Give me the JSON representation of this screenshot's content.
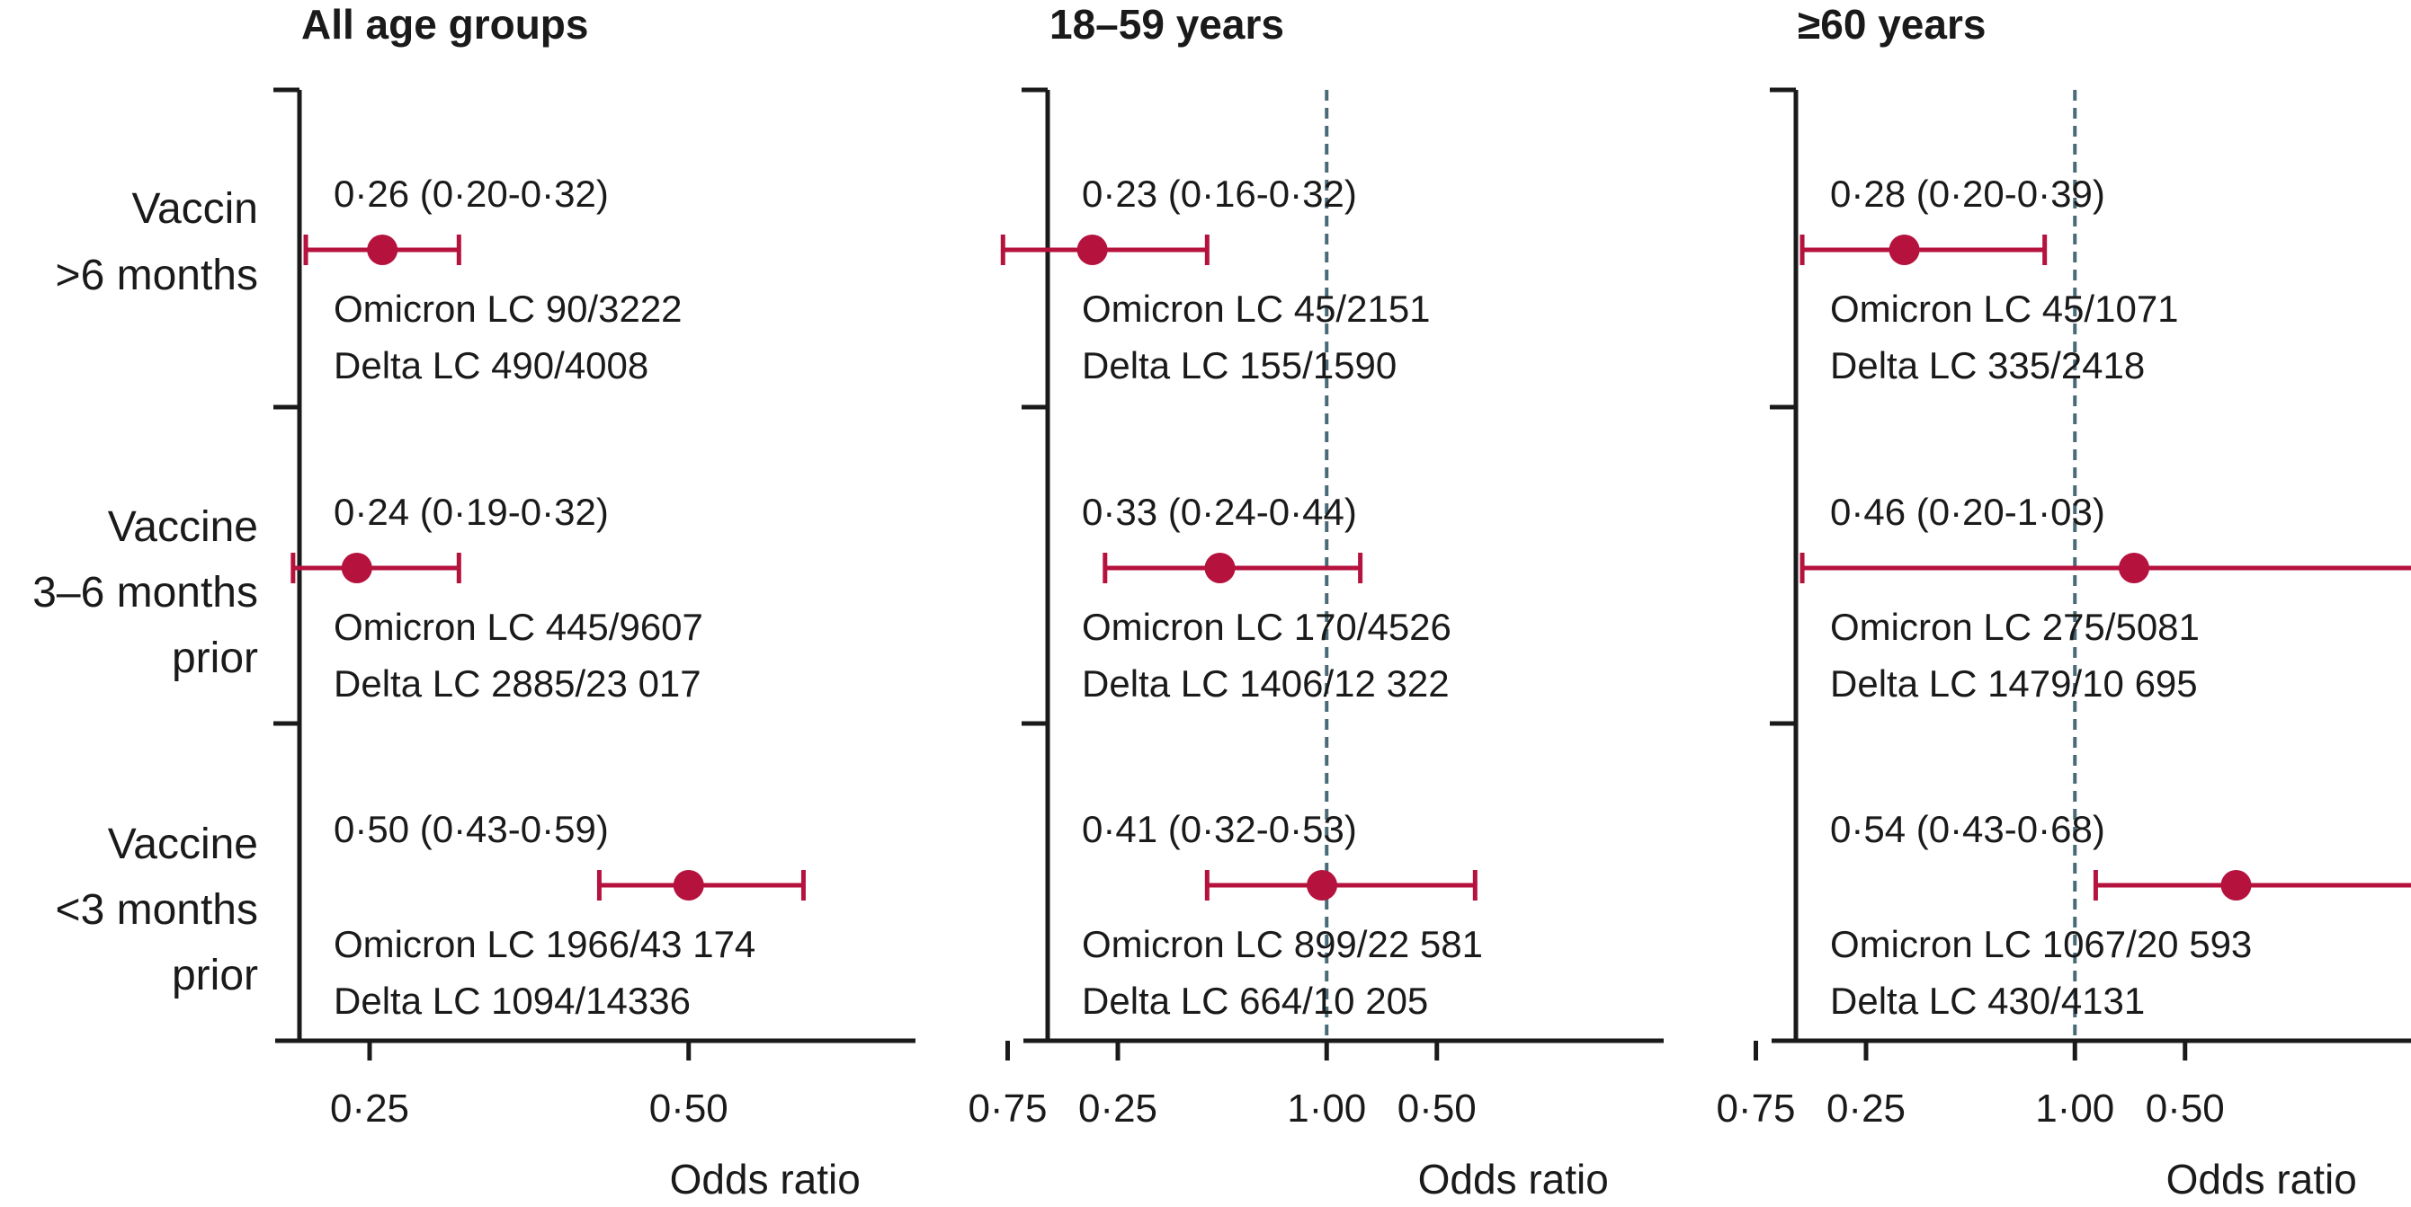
{
  "chart_data": {
    "type": "forest",
    "xlabel": "Odds ratio",
    "xlim": [
      0.14,
      1.07
    ],
    "xticks": [
      0.25,
      0.5,
      0.75,
      1.0
    ],
    "xtick_labels": [
      "0·25",
      "0·50",
      "0·75",
      "1·00"
    ],
    "reference_line": 1.0,
    "row_labels": [
      [
        "Vaccin",
        ">6 months"
      ],
      [
        "Vaccine",
        "3–6 months",
        "prior"
      ],
      [
        "Vaccine",
        "<3 months",
        "prior"
      ]
    ],
    "colors": {
      "marker": "#b5123e",
      "axis": "#1a1a1a",
      "reference": "#4a6a78"
    },
    "panels": [
      {
        "title": "All age groups",
        "rows": [
          {
            "or": 0.26,
            "lo": 0.2,
            "hi": 0.32,
            "label": "0·26 (0·20-0·32)",
            "omicron": "Omicron LC 90/3222",
            "delta": "Delta LC 490/4008"
          },
          {
            "or": 0.24,
            "lo": 0.19,
            "hi": 0.32,
            "label": "0·24 (0·19-0·32)",
            "omicron": "Omicron LC 445/9607",
            "delta": "Delta LC 2885/23 017"
          },
          {
            "or": 0.5,
            "lo": 0.43,
            "hi": 0.59,
            "label": "0·50 (0·43-0·59)",
            "omicron": "Omicron LC 1966/43 174",
            "delta": "Delta LC 1094/14336"
          }
        ]
      },
      {
        "title": "18–59 years",
        "rows": [
          {
            "or": 0.23,
            "lo": 0.16,
            "hi": 0.32,
            "label": "0·23 (0·16-0·32)",
            "omicron": "Omicron LC 45/2151",
            "delta": "Delta LC 155/1590"
          },
          {
            "or": 0.33,
            "lo": 0.24,
            "hi": 0.44,
            "label": "0·33 (0·24-0·44)",
            "omicron": "Omicron LC 170/4526",
            "delta": "Delta LC 1406/12 322"
          },
          {
            "or": 0.41,
            "lo": 0.32,
            "hi": 0.53,
            "label": "0·41 (0·32-0·53)",
            "omicron": "Omicron LC 899/22 581",
            "delta": "Delta LC 664/10 205"
          }
        ]
      },
      {
        "title": "≥60 years",
        "rows": [
          {
            "or": 0.28,
            "lo": 0.2,
            "hi": 0.39,
            "label": "0·28 (0·20-0·39)",
            "omicron": "Omicron LC 45/1071",
            "delta": "Delta LC 335/2418"
          },
          {
            "or": 0.46,
            "lo": 0.2,
            "hi": 1.03,
            "label": "0·46 (0·20-1·03)",
            "omicron": "Omicron LC 275/5081",
            "delta": "Delta LC 1479/10 695"
          },
          {
            "or": 0.54,
            "lo": 0.43,
            "hi": 0.68,
            "label": "0·54 (0·43-0·68)",
            "omicron": "Omicron LC 1067/20 593",
            "delta": "Delta LC 430/4131"
          }
        ]
      }
    ]
  }
}
